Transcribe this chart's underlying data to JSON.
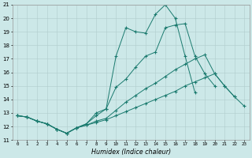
{
  "xlabel": "Humidex (Indice chaleur)",
  "bg_color": "#cce8e8",
  "line_color": "#1a7a6e",
  "grid_color": "#b0cccc",
  "xlim_min": -0.5,
  "xlim_max": 23.5,
  "ylim_min": 11,
  "ylim_max": 21,
  "xticks": [
    0,
    1,
    2,
    3,
    4,
    5,
    6,
    7,
    8,
    9,
    10,
    11,
    12,
    13,
    14,
    15,
    16,
    17,
    18,
    19,
    20,
    21,
    22,
    23
  ],
  "yticks": [
    11,
    12,
    13,
    14,
    15,
    16,
    17,
    18,
    19,
    20,
    21
  ],
  "lines": [
    {
      "x": [
        0,
        1,
        2,
        3,
        4,
        5,
        6,
        7,
        8,
        9,
        10,
        11,
        12,
        13,
        14,
        15,
        16,
        17,
        18,
        19,
        20,
        21,
        22,
        23
      ],
      "y": [
        12.8,
        12.7,
        12.4,
        12.2,
        11.8,
        11.5,
        11.9,
        12.1,
        12.3,
        12.5,
        12.8,
        13.1,
        13.4,
        13.7,
        14.0,
        14.3,
        14.6,
        15.0,
        15.3,
        15.6,
        15.9,
        15.0,
        14.2,
        13.5
      ]
    },
    {
      "x": [
        0,
        1,
        2,
        3,
        4,
        5,
        6,
        7,
        8,
        9,
        10,
        11,
        12,
        13,
        14,
        15,
        16,
        17,
        18,
        19,
        20,
        21,
        22
      ],
      "y": [
        12.8,
        12.7,
        12.4,
        12.2,
        11.8,
        11.5,
        11.9,
        12.1,
        12.4,
        12.6,
        13.2,
        13.8,
        14.3,
        14.8,
        15.2,
        15.7,
        16.2,
        16.6,
        17.0,
        17.3,
        15.9,
        15.0,
        14.2
      ]
    },
    {
      "x": [
        0,
        1,
        2,
        3,
        4,
        5,
        6,
        7,
        8,
        9,
        10,
        11,
        12,
        13,
        14,
        15,
        16,
        17,
        18,
        19,
        20
      ],
      "y": [
        12.8,
        12.7,
        12.4,
        12.2,
        11.8,
        11.5,
        11.9,
        12.2,
        12.8,
        13.3,
        14.9,
        15.5,
        16.4,
        17.2,
        17.5,
        19.3,
        19.5,
        19.6,
        17.2,
        15.9,
        15.0
      ]
    },
    {
      "x": [
        0,
        1,
        2,
        3,
        4,
        5,
        6,
        7,
        8,
        9,
        10,
        11,
        12,
        13,
        14,
        15,
        16,
        17,
        18
      ],
      "y": [
        12.8,
        12.7,
        12.4,
        12.2,
        11.8,
        11.5,
        11.9,
        12.2,
        13.0,
        13.3,
        17.2,
        19.3,
        19.0,
        18.9,
        20.3,
        21.0,
        20.0,
        17.2,
        14.5
      ]
    }
  ]
}
